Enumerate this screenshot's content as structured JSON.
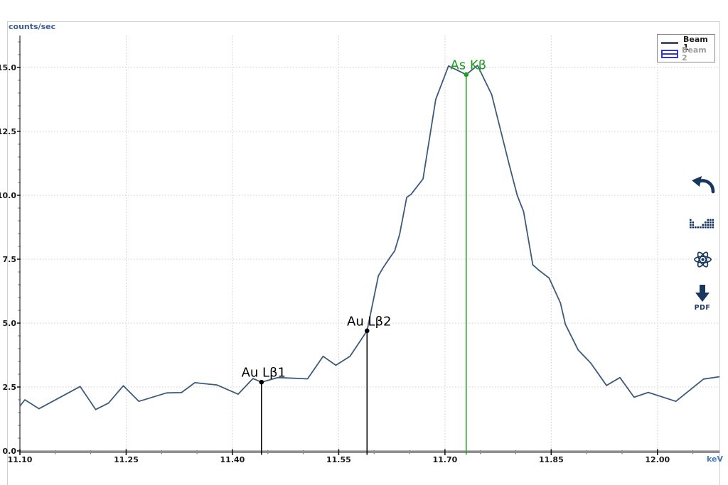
{
  "axes": {
    "y_unit": "counts/sec",
    "x_unit": "keV"
  },
  "legend": {
    "items": [
      {
        "label": "Beam 1",
        "state": "active"
      },
      {
        "label": "Beam 2",
        "state": "inactive"
      }
    ]
  },
  "toolbar": {
    "pdf_label": "PDF",
    "icon_color": "#17375f"
  },
  "colors": {
    "series_line": "#3d5a7a",
    "beam2_swatch": "#3535d0",
    "annotation_green": "#1e9e1e",
    "annotation_black": "#000000",
    "y_unit_label": "#3c5c92",
    "x_unit_label": "#4a7ab8"
  },
  "chart_data": {
    "type": "line",
    "title": "",
    "xlabel": "keV",
    "ylabel": "counts/sec",
    "xlim": [
      11.1,
      12.0875
    ],
    "ylim": [
      0,
      16.25
    ],
    "x_major_ticks": [
      11.1,
      11.25,
      11.4,
      11.55,
      11.7,
      11.85,
      12.0
    ],
    "x_minor_step": 0.05,
    "y_major_ticks": [
      0,
      2.5,
      5.0,
      7.5,
      10.0,
      12.5,
      15.0
    ],
    "y_minor_step": 0.5,
    "grid": true,
    "legend_position": "top-right",
    "series": [
      {
        "name": "Beam 1",
        "color": "#3d5a7a",
        "visible": true,
        "x": [
          11.1,
          11.107,
          11.127,
          11.185,
          11.207,
          11.225,
          11.246,
          11.268,
          11.307,
          11.328,
          11.347,
          11.378,
          11.408,
          11.429,
          11.441,
          11.464,
          11.506,
          11.528,
          11.546,
          11.566,
          11.59,
          11.606,
          11.613,
          11.622,
          11.629,
          11.636,
          11.646,
          11.652,
          11.669,
          11.687,
          11.705,
          11.73,
          11.746,
          11.766,
          11.791,
          11.802,
          11.811,
          11.824,
          11.832,
          11.847,
          11.863,
          11.87,
          11.888,
          11.906,
          11.928,
          11.947,
          11.967,
          11.987,
          12.026,
          12.065,
          12.087
        ],
        "y": [
          1.75,
          2.0,
          1.65,
          2.52,
          1.62,
          1.87,
          2.55,
          1.94,
          2.27,
          2.28,
          2.67,
          2.58,
          2.22,
          2.83,
          2.69,
          2.87,
          2.82,
          3.7,
          3.35,
          3.7,
          4.7,
          6.85,
          7.18,
          7.55,
          7.82,
          8.47,
          9.92,
          10.03,
          10.64,
          13.75,
          15.06,
          14.72,
          15.08,
          13.94,
          11.16,
          10.0,
          9.36,
          7.28,
          7.08,
          6.76,
          5.79,
          4.95,
          3.95,
          3.43,
          2.56,
          2.87,
          2.1,
          2.29,
          1.94,
          2.81,
          2.9
        ]
      },
      {
        "name": "Beam 2",
        "color": "#3535d0",
        "visible": false,
        "x": [],
        "y": []
      }
    ],
    "annotations": [
      {
        "label": "Au Lβ1",
        "x": 11.441,
        "y": 2.69,
        "color": "#000000"
      },
      {
        "label": "Au Lβ2",
        "x": 11.59,
        "y": 4.7,
        "color": "#000000"
      },
      {
        "label": "As Kβ",
        "x": 11.73,
        "y": 14.72,
        "color": "#1e9e1e"
      }
    ]
  }
}
